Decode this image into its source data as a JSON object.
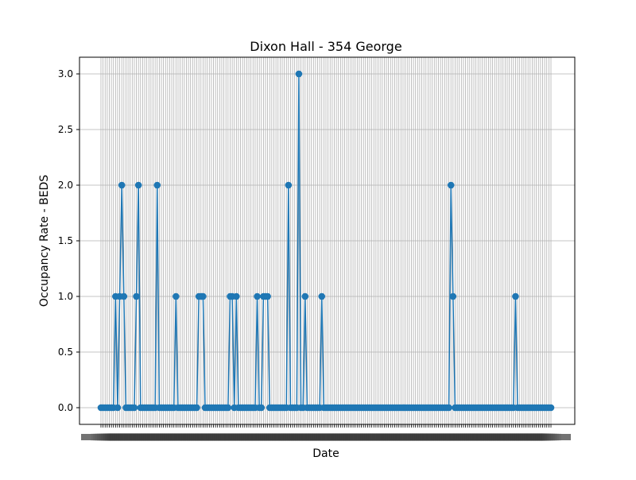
{
  "chart_data": {
    "type": "line",
    "title": "Dixon Hall - 354 George",
    "xlabel": "Date",
    "ylabel": "Occupancy Rate - BEDS",
    "x_tick_labels": "dense overlapping date labels (illegible)",
    "x_count": 217,
    "ylim": [
      -0.15,
      3.15
    ],
    "yticks": [
      0.0,
      0.5,
      1.0,
      1.5,
      2.0,
      2.5,
      3.0
    ],
    "ytick_labels": [
      "0.0",
      "0.5",
      "1.0",
      "1.5",
      "2.0",
      "2.5",
      "3.0"
    ],
    "grid": true,
    "legend": "none",
    "marker": "circle",
    "colors": {
      "series": "#1f77b4",
      "grid": "#b0b0b0",
      "axis": "#000000"
    },
    "series": [
      {
        "name": "",
        "values": [
          0,
          0,
          0,
          0,
          0,
          0,
          0,
          1,
          0,
          1,
          2,
          1,
          0,
          0,
          0,
          0,
          0,
          1,
          2,
          0,
          0,
          0,
          0,
          0,
          0,
          0,
          0,
          2,
          0,
          0,
          0,
          0,
          0,
          0,
          0,
          0,
          1,
          0,
          0,
          0,
          0,
          0,
          0,
          0,
          0,
          0,
          0,
          1,
          1,
          1,
          0,
          0,
          0,
          0,
          0,
          0,
          0,
          0,
          0,
          0,
          0,
          0,
          1,
          1,
          0,
          1,
          0,
          0,
          0,
          0,
          0,
          0,
          0,
          0,
          0,
          1,
          0,
          0,
          1,
          1,
          1,
          0,
          0,
          0,
          0,
          0,
          0,
          0,
          0,
          0,
          2,
          0,
          0,
          0,
          0,
          3,
          0,
          0,
          1,
          0,
          0,
          0,
          0,
          0,
          0,
          0,
          1,
          0,
          0,
          0,
          0,
          0,
          0,
          0,
          0,
          0,
          0,
          0,
          0,
          0,
          0,
          0,
          0,
          0,
          0,
          0,
          0,
          0,
          0,
          0,
          0,
          0,
          0,
          0,
          0,
          0,
          0,
          0,
          0,
          0,
          0,
          0,
          0,
          0,
          0,
          0,
          0,
          0,
          0,
          0,
          0,
          0,
          0,
          0,
          0,
          0,
          0,
          0,
          0,
          0,
          0,
          0,
          0,
          0,
          0,
          0,
          0,
          0,
          2,
          1,
          0,
          0,
          0,
          0,
          0,
          0,
          0,
          0,
          0,
          0,
          0,
          0,
          0,
          0,
          0,
          0,
          0,
          0,
          0,
          0,
          0,
          0,
          0,
          0,
          0,
          0,
          0,
          0,
          0,
          1,
          0,
          0,
          0,
          0,
          0,
          0,
          0,
          0,
          0,
          0,
          0,
          0,
          0,
          0,
          0,
          0,
          0
        ]
      }
    ]
  }
}
